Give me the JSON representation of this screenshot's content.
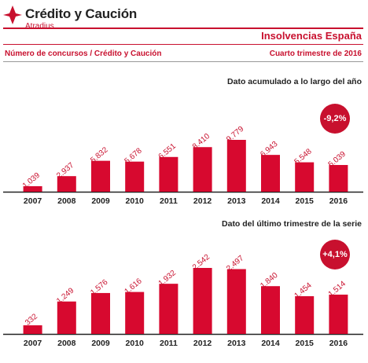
{
  "header": {
    "brand": "Crédito y Caución",
    "brand_sub": "Atradius",
    "report_title": "Insolvencias España",
    "subtitle_left": "Número de concursos  / Crédito y Caución",
    "subtitle_right": "Cuarto trimestre de 2016",
    "accent_color": "#c8102e"
  },
  "chart_data": [
    {
      "type": "bar",
      "title": "Dato acumulado a lo largo del año",
      "badge": "-9,2%",
      "categories": [
        "2007",
        "2008",
        "2009",
        "2010",
        "2011",
        "2012",
        "2013",
        "2014",
        "2015",
        "2016"
      ],
      "values": [
        1039,
        2937,
        5832,
        5678,
        6551,
        8410,
        9779,
        6943,
        5548,
        5039
      ],
      "value_labels": [
        "1.039",
        "2.937",
        "5.832",
        "5.678",
        "6.551",
        "8.410",
        "9.779",
        "6.943",
        "5.548",
        "5.039"
      ],
      "bar_color": "#d7092f"
    },
    {
      "type": "bar",
      "title": "Dato del último trimestre de la serie",
      "badge": "+4,1%",
      "categories": [
        "2007",
        "2008",
        "2009",
        "2010",
        "2011",
        "2012",
        "2013",
        "2014",
        "2015",
        "2016"
      ],
      "values": [
        332,
        1249,
        1576,
        1616,
        1932,
        2542,
        2497,
        1840,
        1454,
        1514
      ],
      "value_labels": [
        "332",
        "1.249",
        "1.576",
        "1.616",
        "1.932",
        "2.542",
        "2.497",
        "1.840",
        "1.454",
        "1.514"
      ],
      "bar_color": "#d7092f"
    }
  ]
}
